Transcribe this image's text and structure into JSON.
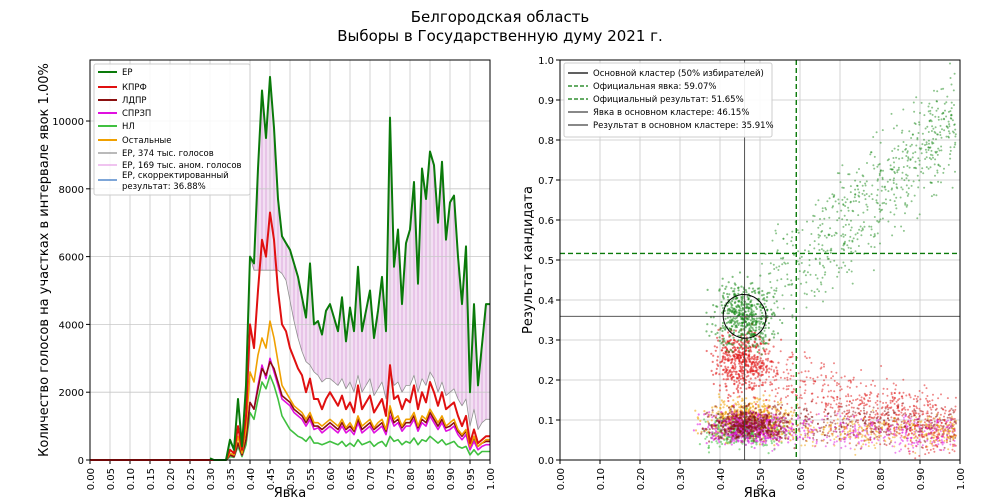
{
  "figure": {
    "title_line1": "Белгородская область",
    "title_line2": "Выборы в Государственную думу 2021 г."
  },
  "chart_data": [
    {
      "type": "line",
      "xlabel": "Явка",
      "ylabel": "Количество голосов на участках в интервале явок 1.00%",
      "xlim": [
        0,
        1
      ],
      "ylim": [
        0,
        11800
      ],
      "xticks": [
        "0.00",
        "0.05",
        "0.10",
        "0.15",
        "0.20",
        "0.25",
        "0.30",
        "0.35",
        "0.40",
        "0.45",
        "0.50",
        "0.55",
        "0.60",
        "0.65",
        "0.70",
        "0.75",
        "0.80",
        "0.85",
        "0.90",
        "0.95",
        "1.00"
      ],
      "yticks": [
        "0",
        "2000",
        "4000",
        "6000",
        "8000",
        "10000"
      ],
      "grid": true,
      "legend_position": "top-left",
      "legend": [
        {
          "label": "ЕР",
          "color": "#0a7a0a"
        },
        {
          "label": "КПРФ",
          "color": "#e01010"
        },
        {
          "label": "ЛДПР",
          "color": "#8b1010"
        },
        {
          "label": "СПРЗП",
          "color": "#e010e0"
        },
        {
          "label": "НЛ",
          "color": "#40c040"
        },
        {
          "label": "Остальные",
          "color": "#f0a000"
        },
        {
          "label": "ЕР, 374 тыс. голосов",
          "color": "#909090"
        },
        {
          "label": "ЕР, 169 тыс. аном. голосов",
          "color": "#e8a0e8"
        },
        {
          "label": "ЕР, скорректированный результат: 36.88%",
          "color": "#3070c0"
        }
      ],
      "x": [
        0.3,
        0.31,
        0.32,
        0.33,
        0.34,
        0.35,
        0.36,
        0.37,
        0.38,
        0.39,
        0.4,
        0.41,
        0.42,
        0.43,
        0.44,
        0.45,
        0.46,
        0.47,
        0.48,
        0.49,
        0.5,
        0.51,
        0.52,
        0.53,
        0.54,
        0.55,
        0.56,
        0.57,
        0.58,
        0.59,
        0.6,
        0.61,
        0.62,
        0.63,
        0.64,
        0.65,
        0.66,
        0.67,
        0.68,
        0.69,
        0.7,
        0.71,
        0.72,
        0.73,
        0.74,
        0.75,
        0.76,
        0.77,
        0.78,
        0.79,
        0.8,
        0.81,
        0.82,
        0.83,
        0.84,
        0.85,
        0.86,
        0.87,
        0.88,
        0.89,
        0.9,
        0.91,
        0.92,
        0.93,
        0.94,
        0.95,
        0.96,
        0.97,
        0.98,
        0.99,
        1.0
      ],
      "series": [
        {
          "name": "ЕР",
          "values": [
            50,
            0,
            0,
            0,
            0,
            600,
            300,
            1800,
            400,
            2200,
            6000,
            5800,
            8600,
            10900,
            9500,
            11300,
            9800,
            7700,
            6600,
            6400,
            6200,
            5800,
            5400,
            4800,
            4200,
            5800,
            4000,
            4100,
            3700,
            4400,
            4600,
            4200,
            3800,
            4800,
            3500,
            4500,
            3800,
            5700,
            3800,
            4400,
            5000,
            3600,
            4400,
            5400,
            3800,
            10100,
            5700,
            6800,
            4600,
            6400,
            6800,
            8200,
            5200,
            8600,
            7700,
            9100,
            8700,
            7000,
            8800,
            6500,
            7600,
            7800,
            6000,
            4600,
            6300,
            2000,
            4600,
            2200,
            3400,
            4600,
            4600
          ]
        },
        {
          "name": "КПРФ",
          "values": [
            0,
            0,
            0,
            0,
            0,
            300,
            200,
            1000,
            300,
            1300,
            4000,
            3300,
            5000,
            6500,
            6000,
            7300,
            6500,
            5000,
            4000,
            3800,
            3300,
            3000,
            2700,
            2500,
            2000,
            2400,
            1800,
            1800,
            1500,
            1800,
            2000,
            1800,
            1600,
            1900,
            1500,
            1700,
            1400,
            2200,
            1500,
            1700,
            1900,
            1400,
            1600,
            1800,
            1300,
            2800,
            1800,
            1900,
            1500,
            1800,
            1700,
            2200,
            1500,
            2000,
            1700,
            2300,
            2000,
            1600,
            2000,
            1500,
            1600,
            1700,
            1300,
            1000,
            1300,
            500,
            900,
            500,
            600,
            700,
            700
          ]
        },
        {
          "name": "ЛДПР",
          "values": [
            0,
            0,
            0,
            0,
            0,
            150,
            100,
            500,
            150,
            600,
            1700,
            1500,
            2100,
            2700,
            2500,
            2900,
            2700,
            2300,
            1900,
            1800,
            1700,
            1500,
            1400,
            1300,
            1100,
            1300,
            1000,
            1000,
            900,
            1000,
            1100,
            1000,
            900,
            1100,
            900,
            1000,
            850,
            1200,
            900,
            1000,
            1100,
            900,
            1000,
            1100,
            850,
            1500,
            1100,
            1200,
            950,
            1100,
            1100,
            1300,
            950,
            1200,
            1100,
            1400,
            1200,
            1000,
            1200,
            950,
            1000,
            1100,
            850,
            700,
            850,
            400,
            650,
            400,
            500,
            550,
            550
          ]
        },
        {
          "name": "СПРЗП",
          "values": [
            0,
            0,
            0,
            0,
            0,
            150,
            100,
            500,
            150,
            600,
            1700,
            1500,
            2200,
            2800,
            2400,
            3000,
            2600,
            2200,
            1800,
            1700,
            1600,
            1400,
            1300,
            1200,
            1000,
            1200,
            900,
            950,
            800,
            900,
            1000,
            900,
            800,
            1000,
            800,
            900,
            750,
            1100,
            800,
            900,
            1000,
            800,
            900,
            1000,
            750,
            1300,
            1000,
            1100,
            850,
            1000,
            1000,
            1200,
            850,
            1100,
            1000,
            1300,
            1100,
            900,
            1100,
            850,
            900,
            1000,
            750,
            600,
            750,
            300,
            550,
            300,
            400,
            450,
            450
          ]
        },
        {
          "name": "НЛ",
          "values": [
            0,
            0,
            0,
            0,
            0,
            100,
            80,
            400,
            100,
            450,
            1400,
            1200,
            1800,
            2300,
            2100,
            2500,
            2200,
            1800,
            1300,
            1100,
            900,
            800,
            700,
            650,
            550,
            700,
            500,
            500,
            450,
            500,
            550,
            500,
            450,
            550,
            400,
            500,
            400,
            600,
            450,
            500,
            550,
            400,
            500,
            550,
            400,
            700,
            550,
            600,
            450,
            550,
            500,
            650,
            450,
            600,
            550,
            700,
            600,
            500,
            600,
            450,
            500,
            550,
            400,
            350,
            400,
            150,
            300,
            150,
            250,
            250,
            250
          ]
        },
        {
          "name": "Остальные",
          "values": [
            0,
            0,
            0,
            0,
            0,
            200,
            150,
            700,
            200,
            900,
            2600,
            2300,
            3100,
            3600,
            3300,
            4100,
            3600,
            2900,
            2200,
            2000,
            1800,
            1600,
            1500,
            1400,
            1200,
            1400,
            1100,
            1100,
            1000,
            1100,
            1200,
            1100,
            1000,
            1200,
            950,
            1100,
            900,
            1300,
            1000,
            1100,
            1200,
            950,
            1100,
            1200,
            900,
            1600,
            1200,
            1300,
            1000,
            1200,
            1200,
            1400,
            1000,
            1300,
            1200,
            1500,
            1300,
            1100,
            1300,
            1000,
            1100,
            1200,
            900,
            750,
            900,
            400,
            700,
            400,
            500,
            600,
            600
          ]
        },
        {
          "name": "ЕР, 374 тыс. голосов",
          "values": [
            50,
            0,
            0,
            0,
            0,
            600,
            300,
            1800,
            400,
            2200,
            6000,
            5600,
            5600,
            5600,
            5600,
            5600,
            5600,
            5600,
            5500,
            5300,
            4700,
            4100,
            3600,
            3200,
            2900,
            2800,
            2600,
            2500,
            2300,
            2400,
            2400,
            2300,
            2200,
            2400,
            2100,
            2300,
            2000,
            2500,
            2000,
            2200,
            2400,
            1900,
            2100,
            2300,
            1800,
            2700,
            2200,
            2300,
            2000,
            2200,
            2200,
            2500,
            2000,
            2400,
            2200,
            2600,
            2400,
            2000,
            2300,
            1900,
            2000,
            2100,
            1800,
            1600,
            1800,
            1000,
            1500,
            900,
            1100,
            1200,
            1200
          ]
        }
      ]
    },
    {
      "type": "scatter",
      "xlabel": "Явка",
      "ylabel": "Результат кандидата",
      "xlim": [
        0,
        1
      ],
      "ylim": [
        0,
        1
      ],
      "xticks": [
        "0.00",
        "0.10",
        "0.20",
        "0.30",
        "0.40",
        "0.50",
        "0.60",
        "0.70",
        "0.80",
        "0.90",
        "1.00"
      ],
      "yticks": [
        "0.0",
        "0.1",
        "0.2",
        "0.3",
        "0.4",
        "0.5",
        "0.6",
        "0.7",
        "0.8",
        "0.9",
        "1.0"
      ],
      "grid": true,
      "legend_position": "top-left",
      "legend": [
        {
          "label": "Основной кластер (50% избирателей)",
          "style": "solid",
          "color": "#000000"
        },
        {
          "label": "Официальная явка: 59.07%",
          "style": "dashed",
          "color": "#0a7a0a"
        },
        {
          "label": "Официальный результат: 51.65%",
          "style": "dashed",
          "color": "#0a7a0a"
        },
        {
          "label": "Явка в основном кластере: 46.15%",
          "style": "solid",
          "color": "#404040"
        },
        {
          "label": "Результат в основном кластере: 35.91%",
          "style": "solid",
          "color": "#404040"
        }
      ],
      "official_turnout": 0.5907,
      "official_result": 0.5165,
      "cluster_turnout": 0.4615,
      "cluster_result": 0.3591,
      "cluster_ellipse": {
        "center_x": 0.4615,
        "center_y": 0.3591,
        "half_width_x": 0.12,
        "half_height_y": 0.065,
        "rotation_deg": -30
      },
      "series": [
        {
          "name": "ЕР",
          "color": "#1a8a1a",
          "description_points": "main cluster near x≈0.46, y≈0.36; anomalous tail toward x≈0.9, y≈0.8"
        },
        {
          "name": "КПРФ",
          "color": "#e01010",
          "description_points": "cluster near x≈0.45, y≈0.25; spread to x≈1.0, y≈0.1"
        },
        {
          "name": "ЛДПР",
          "color": "#8b1010"
        },
        {
          "name": "СПРЗП",
          "color": "#e010e0"
        },
        {
          "name": "НЛ",
          "color": "#40c040"
        },
        {
          "name": "Остальные",
          "color": "#f0a000"
        }
      ]
    }
  ]
}
